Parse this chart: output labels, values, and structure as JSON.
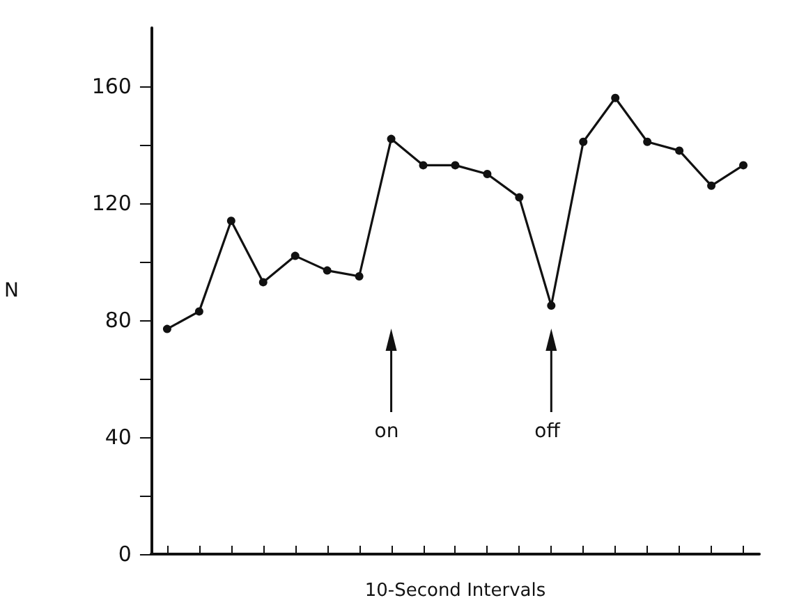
{
  "chart_data": {
    "type": "line",
    "xlabel": "10-Second Intervals",
    "ylabel": "N",
    "categories": [
      null,
      null,
      null,
      null,
      null,
      null,
      null,
      null,
      null,
      null,
      null,
      null,
      null,
      null,
      null,
      null,
      null,
      null,
      null
    ],
    "series": [
      {
        "color": "#111111",
        "values": [
          77,
          83,
          114,
          93,
          102,
          97,
          95,
          142,
          133,
          133,
          130,
          122,
          85,
          141,
          156,
          141,
          138,
          126,
          133
        ]
      }
    ],
    "ylim": [
      0,
      180
    ],
    "yticks": [
      0,
      {
        "value": 20,
        "label": null
      },
      40,
      {
        "value": 60,
        "label": null
      },
      80,
      {
        "value": 100,
        "label": null
      },
      120,
      {
        "value": 140,
        "label": null
      },
      160
    ],
    "annotations": [
      "on",
      "off"
    ],
    "marker": "circle",
    "line_style": "solid"
  }
}
